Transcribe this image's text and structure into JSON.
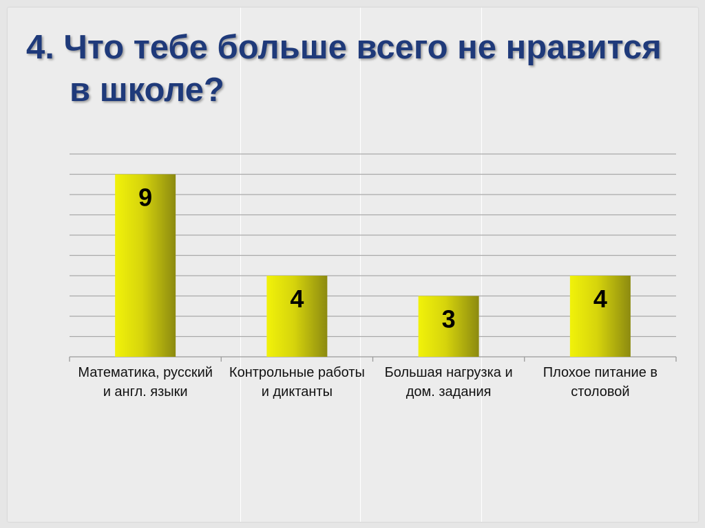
{
  "slide": {
    "title_line1": "4. Что тебе больше всего не нравится",
    "title_line2": "в школе?"
  },
  "colors": {
    "title": "#1f3a7a",
    "bar_light": "#f1f20a",
    "bar_dark": "#8c8a10",
    "gridline": "#a8a8a8",
    "background": "#ececec"
  },
  "chart_data": {
    "type": "bar",
    "categories": [
      "Математика, русский и англ. языки",
      "Контрольные работы и диктанты",
      "Большая нагрузка и дом. задания",
      "Плохое питание в столовой"
    ],
    "category_label_lines": [
      [
        "Математика, русский",
        "и англ. языки"
      ],
      [
        "Контрольные работы",
        "и диктанты"
      ],
      [
        "Большая нагрузка и",
        "дом. задания"
      ],
      [
        "Плохое питание в",
        "столовой"
      ]
    ],
    "values": [
      9,
      4,
      3,
      4
    ],
    "data_labels": [
      "9",
      "4",
      "3",
      "4"
    ],
    "ylim": [
      0,
      10
    ],
    "y_gridlines": true,
    "legend": "none",
    "title": "4. Что тебе больше всего не нравится в школе?",
    "xlabel": "",
    "ylabel": ""
  }
}
